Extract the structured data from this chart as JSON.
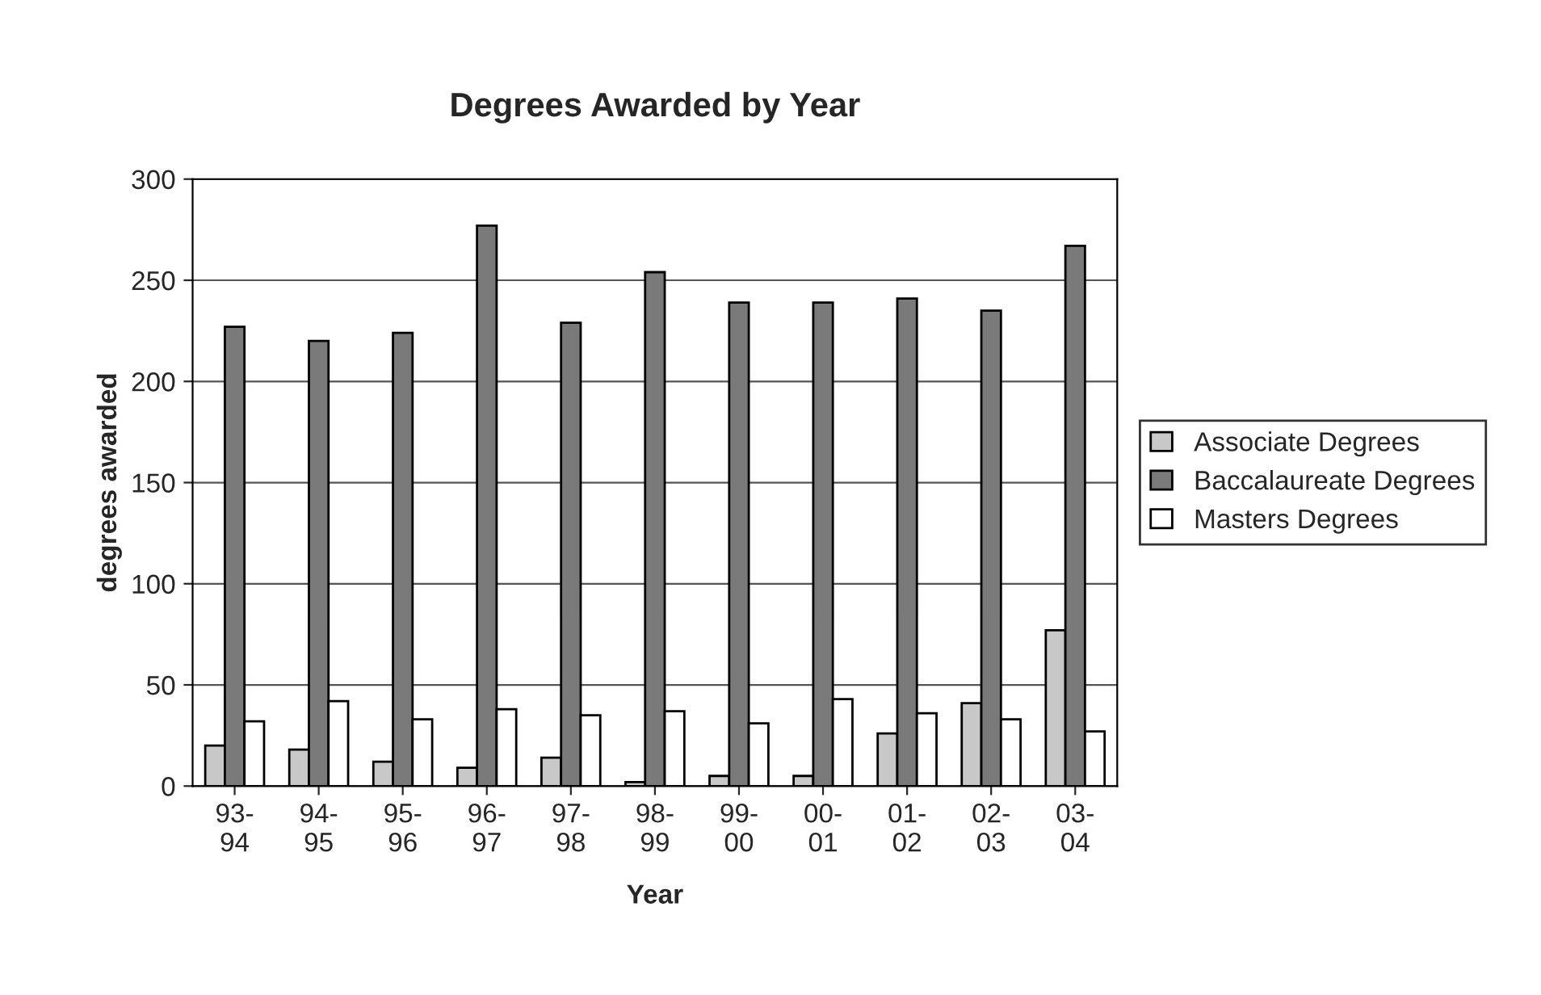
{
  "chart_data": {
    "type": "bar",
    "title": "Degrees Awarded by Year",
    "xlabel": "Year",
    "ylabel": "degrees awarded",
    "categories": [
      "93-\n94",
      "94-\n95",
      "95-\n96",
      "96-\n97",
      "97-\n98",
      "98-\n99",
      "99-\n00",
      "00-\n01",
      "01-\n02",
      "02-\n03",
      "03-\n04"
    ],
    "series": [
      {
        "name": "Associate Degrees",
        "color": "#c8c8c8",
        "values": [
          20,
          18,
          12,
          9,
          14,
          2,
          5,
          5,
          26,
          41,
          77
        ]
      },
      {
        "name": "Baccalaureate Degrees",
        "color": "#7a7a7a",
        "values": [
          227,
          220,
          224,
          277,
          229,
          254,
          239,
          239,
          241,
          235,
          267
        ]
      },
      {
        "name": "Masters Degrees",
        "color": "#ffffff",
        "values": [
          32,
          42,
          33,
          38,
          35,
          37,
          31,
          43,
          36,
          33,
          27
        ]
      }
    ],
    "ylim": [
      0,
      300
    ],
    "yticks": [
      0,
      50,
      100,
      150,
      200,
      250,
      300
    ],
    "grid": "y",
    "legend": "right"
  }
}
